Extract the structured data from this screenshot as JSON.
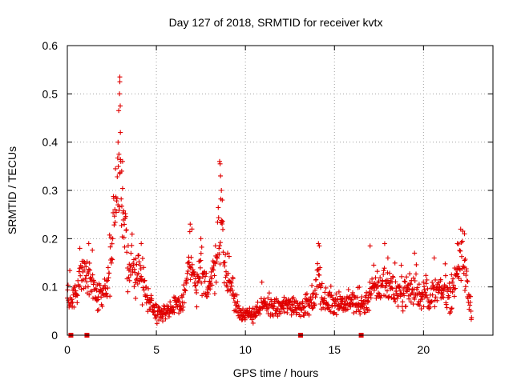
{
  "chart_data": {
    "type": "scatter",
    "title": "Day 127 of 2018, SRMTID for receiver kvtx",
    "xlabel": "GPS time / hours",
    "ylabel": "SRMTID / TECUs",
    "xlim": [
      0,
      23.9
    ],
    "ylim": [
      0,
      0.6
    ],
    "xticks": [
      "0",
      "5",
      "10",
      "15",
      "20"
    ],
    "yticks": [
      "0",
      "0.1",
      "0.2",
      "0.3",
      "0.4",
      "0.5",
      "0.6"
    ],
    "grid": true,
    "marker": "+",
    "series_color": "#e00000",
    "profile": [
      {
        "x": 0.0,
        "y": 0.08
      },
      {
        "x": 0.3,
        "y": 0.07
      },
      {
        "x": 0.6,
        "y": 0.11
      },
      {
        "x": 0.8,
        "y": 0.14
      },
      {
        "x": 1.1,
        "y": 0.12
      },
      {
        "x": 1.3,
        "y": 0.13
      },
      {
        "x": 1.6,
        "y": 0.08
      },
      {
        "x": 2.0,
        "y": 0.08
      },
      {
        "x": 2.3,
        "y": 0.12
      },
      {
        "x": 2.6,
        "y": 0.23
      },
      {
        "x": 2.8,
        "y": 0.33
      },
      {
        "x": 3.0,
        "y": 0.3
      },
      {
        "x": 3.2,
        "y": 0.2
      },
      {
        "x": 3.5,
        "y": 0.13
      },
      {
        "x": 3.8,
        "y": 0.14
      },
      {
        "x": 4.1,
        "y": 0.13
      },
      {
        "x": 4.4,
        "y": 0.09
      },
      {
        "x": 4.8,
        "y": 0.06
      },
      {
        "x": 5.2,
        "y": 0.045
      },
      {
        "x": 5.6,
        "y": 0.05
      },
      {
        "x": 6.0,
        "y": 0.06
      },
      {
        "x": 6.4,
        "y": 0.06
      },
      {
        "x": 6.7,
        "y": 0.11
      },
      {
        "x": 6.9,
        "y": 0.16
      },
      {
        "x": 7.2,
        "y": 0.09
      },
      {
        "x": 7.5,
        "y": 0.13
      },
      {
        "x": 7.9,
        "y": 0.1
      },
      {
        "x": 8.2,
        "y": 0.13
      },
      {
        "x": 8.5,
        "y": 0.22
      },
      {
        "x": 8.7,
        "y": 0.21
      },
      {
        "x": 8.9,
        "y": 0.12
      },
      {
        "x": 9.2,
        "y": 0.1
      },
      {
        "x": 9.5,
        "y": 0.06
      },
      {
        "x": 9.8,
        "y": 0.045
      },
      {
        "x": 10.2,
        "y": 0.04
      },
      {
        "x": 10.6,
        "y": 0.05
      },
      {
        "x": 11.0,
        "y": 0.06
      },
      {
        "x": 11.4,
        "y": 0.06
      },
      {
        "x": 11.8,
        "y": 0.055
      },
      {
        "x": 12.2,
        "y": 0.06
      },
      {
        "x": 12.6,
        "y": 0.065
      },
      {
        "x": 13.0,
        "y": 0.06
      },
      {
        "x": 13.4,
        "y": 0.06
      },
      {
        "x": 13.8,
        "y": 0.065
      },
      {
        "x": 14.1,
        "y": 0.12
      },
      {
        "x": 14.4,
        "y": 0.07
      },
      {
        "x": 14.8,
        "y": 0.07
      },
      {
        "x": 15.2,
        "y": 0.07
      },
      {
        "x": 15.6,
        "y": 0.065
      },
      {
        "x": 16.0,
        "y": 0.07
      },
      {
        "x": 16.4,
        "y": 0.06
      },
      {
        "x": 16.8,
        "y": 0.07
      },
      {
        "x": 17.2,
        "y": 0.1
      },
      {
        "x": 17.6,
        "y": 0.1
      },
      {
        "x": 18.0,
        "y": 0.11
      },
      {
        "x": 18.4,
        "y": 0.09
      },
      {
        "x": 18.8,
        "y": 0.09
      },
      {
        "x": 19.2,
        "y": 0.095
      },
      {
        "x": 19.6,
        "y": 0.09
      },
      {
        "x": 20.0,
        "y": 0.08
      },
      {
        "x": 20.4,
        "y": 0.08
      },
      {
        "x": 20.8,
        "y": 0.09
      },
      {
        "x": 21.2,
        "y": 0.09
      },
      {
        "x": 21.6,
        "y": 0.08
      },
      {
        "x": 21.9,
        "y": 0.15
      },
      {
        "x": 22.2,
        "y": 0.16
      },
      {
        "x": 22.5,
        "y": 0.09
      },
      {
        "x": 22.7,
        "y": 0.05
      }
    ],
    "spikes": [
      {
        "x": 2.95,
        "y": 0.535
      },
      {
        "x": 2.95,
        "y": 0.525
      },
      {
        "x": 2.93,
        "y": 0.5
      },
      {
        "x": 2.97,
        "y": 0.475
      },
      {
        "x": 2.98,
        "y": 0.42
      },
      {
        "x": 2.85,
        "y": 0.4
      },
      {
        "x": 2.9,
        "y": 0.375
      },
      {
        "x": 3.1,
        "y": 0.36
      },
      {
        "x": 3.05,
        "y": 0.34
      },
      {
        "x": 8.55,
        "y": 0.36
      },
      {
        "x": 8.58,
        "y": 0.355
      },
      {
        "x": 8.6,
        "y": 0.33
      },
      {
        "x": 8.65,
        "y": 0.3
      },
      {
        "x": 8.7,
        "y": 0.28
      },
      {
        "x": 6.9,
        "y": 0.23
      },
      {
        "x": 7.0,
        "y": 0.22
      },
      {
        "x": 7.5,
        "y": 0.2
      },
      {
        "x": 14.1,
        "y": 0.19
      },
      {
        "x": 14.15,
        "y": 0.185
      },
      {
        "x": 22.3,
        "y": 0.21
      },
      {
        "x": 1.2,
        "y": 0.19
      },
      {
        "x": 0.7,
        "y": 0.18
      },
      {
        "x": 4.15,
        "y": 0.19
      },
      {
        "x": 17.0,
        "y": 0.185
      },
      {
        "x": 21.9,
        "y": 0.19
      },
      {
        "x": 18.0,
        "y": 0.16
      },
      {
        "x": 19.5,
        "y": 0.17
      },
      {
        "x": 20.6,
        "y": 0.16
      },
      {
        "x": 9.0,
        "y": 0.17
      }
    ],
    "zero_markers": [
      {
        "x": 0.2,
        "y": 0
      },
      {
        "x": 1.1,
        "y": 0
      },
      {
        "x": 13.1,
        "y": 0
      },
      {
        "x": 16.5,
        "y": 0
      }
    ]
  }
}
